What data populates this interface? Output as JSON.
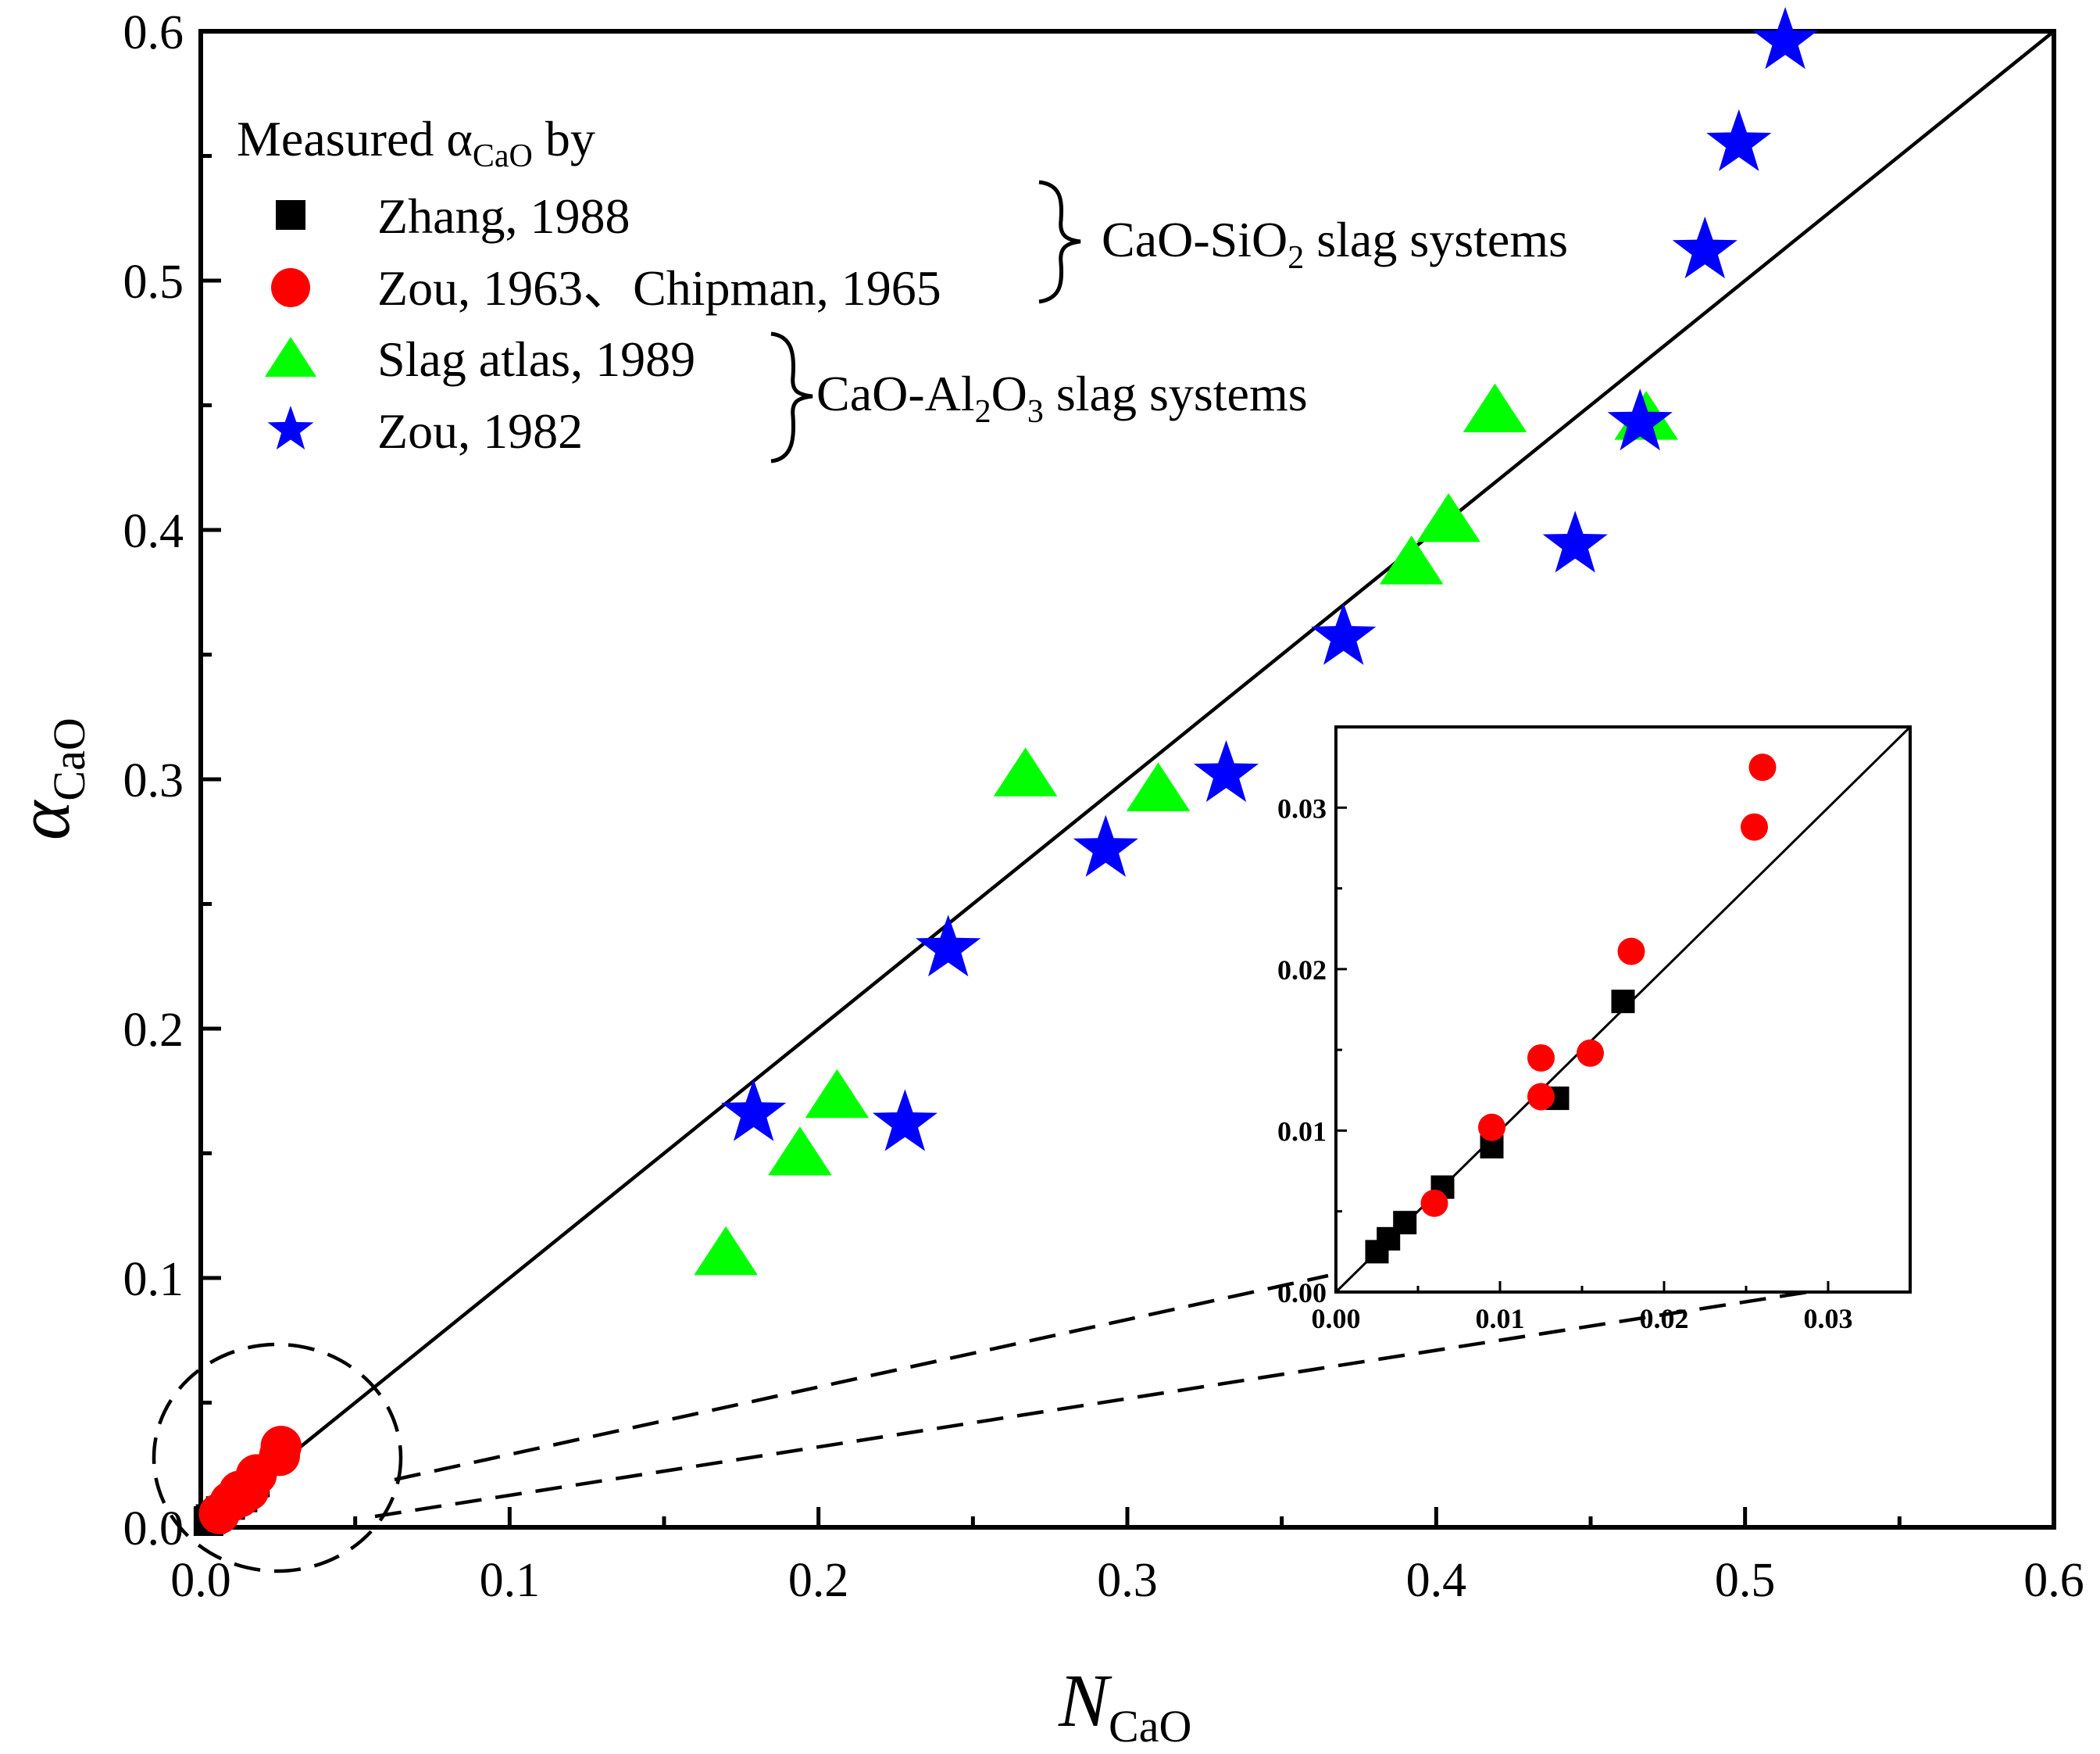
{
  "chart_data": [
    {
      "id": "main",
      "type": "scatter",
      "xlabel": {
        "symbol": "N",
        "sub": "CaO"
      },
      "ylabel": {
        "symbol": "α",
        "sub": "CaO"
      },
      "xlim": [
        0,
        0.6
      ],
      "ylim": [
        0,
        0.6
      ],
      "xticks": [
        "0.0",
        "0.1",
        "0.2",
        "0.3",
        "0.4",
        "0.5",
        "0.6"
      ],
      "yticks": [
        "0.0",
        "0.1",
        "0.2",
        "0.3",
        "0.4",
        "0.5",
        "0.6"
      ],
      "reference_line": {
        "label": "y = x",
        "from": [
          0,
          0
        ],
        "to": [
          0.6,
          0.6
        ]
      },
      "series": [
        {
          "name": "Zhang, 1988",
          "marker": "square",
          "color": "#000000",
          "x": [
            0.0025,
            0.0032,
            0.0042,
            0.0065,
            0.0095,
            0.0135,
            0.0175
          ],
          "y": [
            0.0025,
            0.0033,
            0.0043,
            0.0065,
            0.009,
            0.012,
            0.018
          ]
        },
        {
          "name": "Zou, 1963、Chipman, 1965",
          "marker": "circle",
          "color": "#ff0000",
          "x": [
            0.006,
            0.0095,
            0.0125,
            0.0125,
            0.0155,
            0.018,
            0.0255,
            0.026
          ],
          "y": [
            0.0055,
            0.0102,
            0.0145,
            0.0121,
            0.0148,
            0.0211,
            0.0288,
            0.0325
          ]
        },
        {
          "name": "Slag atlas, 1989",
          "marker": "triangle",
          "color": "#00ff00",
          "x": [
            0.17,
            0.194,
            0.206,
            0.267,
            0.31,
            0.392,
            0.404,
            0.419,
            0.468
          ],
          "y": [
            0.109,
            0.149,
            0.172,
            0.301,
            0.295,
            0.386,
            0.403,
            0.447,
            0.444
          ]
        },
        {
          "name": "Zou, 1982",
          "marker": "star",
          "color": "#0000ff",
          "x": [
            0.179,
            0.228,
            0.242,
            0.293,
            0.332,
            0.37,
            0.445,
            0.466,
            0.487,
            0.498,
            0.513
          ],
          "y": [
            0.166,
            0.162,
            0.232,
            0.272,
            0.302,
            0.357,
            0.394,
            0.443,
            0.512,
            0.555,
            0.596
          ]
        }
      ]
    },
    {
      "id": "inset",
      "type": "scatter",
      "xlim": [
        0,
        0.035
      ],
      "ylim": [
        0,
        0.035
      ],
      "xticks": [
        "0.00",
        "0.01",
        "0.02",
        "0.03"
      ],
      "yticks": [
        "0.00",
        "0.01",
        "0.02",
        "0.03"
      ],
      "reference_line": {
        "label": "y = x",
        "from": [
          0,
          0
        ],
        "to": [
          0.035,
          0.035
        ]
      },
      "series_ref": [
        "Zhang, 1988",
        "Zou, 1963、Chipman, 1965"
      ]
    }
  ],
  "legend": {
    "title_prefix": "Measured α",
    "title_sub": "CaO",
    "title_suffix": " by",
    "entries": [
      "Zhang, 1988",
      "Zou, 1963、Chipman, 1965",
      "Slag atlas, 1989",
      "Zou, 1982"
    ]
  },
  "groups": [
    {
      "pre": "CaO-SiO",
      "sub": "2",
      "post": " slag systems"
    },
    {
      "pre": "CaO-Al",
      "sub": "2",
      "mid": "O",
      "sub2": "3",
      "post": " slag systems"
    }
  ]
}
